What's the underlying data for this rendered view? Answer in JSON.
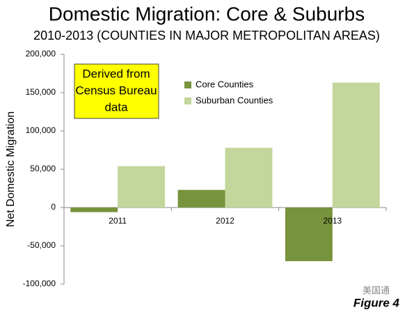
{
  "chart_data": {
    "type": "bar",
    "title": "Domestic Migration: Core & Suburbs",
    "subtitle": "2010-2013 (COUNTIES IN MAJOR METROPOLITAN AREAS)",
    "y_label": "Net Domestic Migration",
    "annotation": [
      "Derived from",
      "Census Bureau",
      "data"
    ],
    "footnote": "Figure 4",
    "watermark": "美国通",
    "categories": [
      "2011",
      "2012",
      "2013"
    ],
    "series": [
      {
        "name": "Core Counties",
        "color": "#77933c",
        "values": [
          -6000,
          23000,
          -70000
        ]
      },
      {
        "name": "Suburban Counties",
        "color": "#c3d69b",
        "values": [
          54000,
          78000,
          163000
        ]
      }
    ],
    "ylim": [
      -100000,
      200000
    ],
    "yticks": [
      {
        "value": -100000,
        "label": "-100,000"
      },
      {
        "value": -50000,
        "label": "-50,000"
      },
      0,
      {
        "value": 50000,
        "label": "50,000"
      },
      {
        "value": 100000,
        "label": "100,000"
      },
      {
        "value": 150000,
        "label": "150,000"
      },
      {
        "value": 200000,
        "label": "200,000"
      }
    ],
    "grid": false
  }
}
